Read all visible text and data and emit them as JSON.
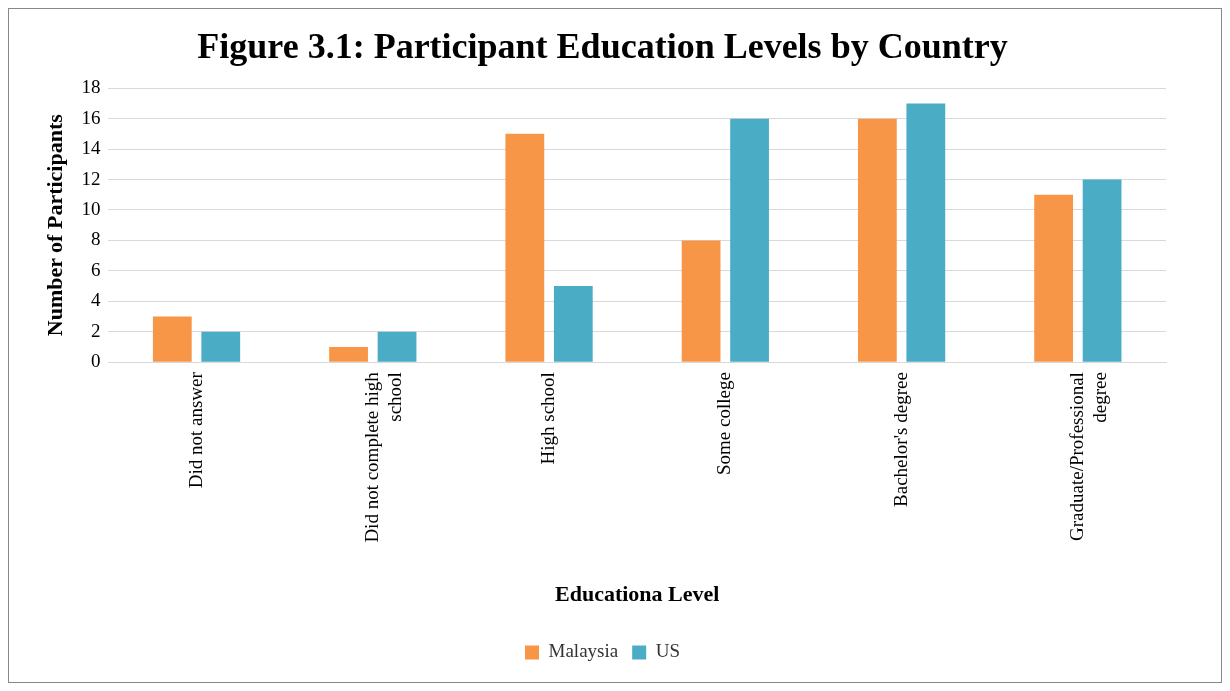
{
  "chart_data": {
    "type": "bar",
    "title": "Figure 3.1: Participant Education Levels by Country",
    "xlabel": "Educationa Level",
    "ylabel": "Number of Participants",
    "categories": [
      "Did not answer",
      "Did not complete high school",
      "High school",
      "Some college",
      "Bachelor's degree",
      "Graduate/Professional degree"
    ],
    "series": [
      {
        "name": "Malaysia",
        "color": "#f79646",
        "values": [
          3,
          1,
          15,
          8,
          16,
          11
        ]
      },
      {
        "name": "US",
        "color": "#4bacc6",
        "values": [
          2,
          2,
          5,
          16,
          17,
          12
        ]
      }
    ],
    "ylim": [
      0,
      18
    ],
    "yticks": [
      0,
      2,
      4,
      6,
      8,
      10,
      12,
      14,
      16,
      18
    ],
    "grid": "y",
    "legend": "bottom"
  }
}
